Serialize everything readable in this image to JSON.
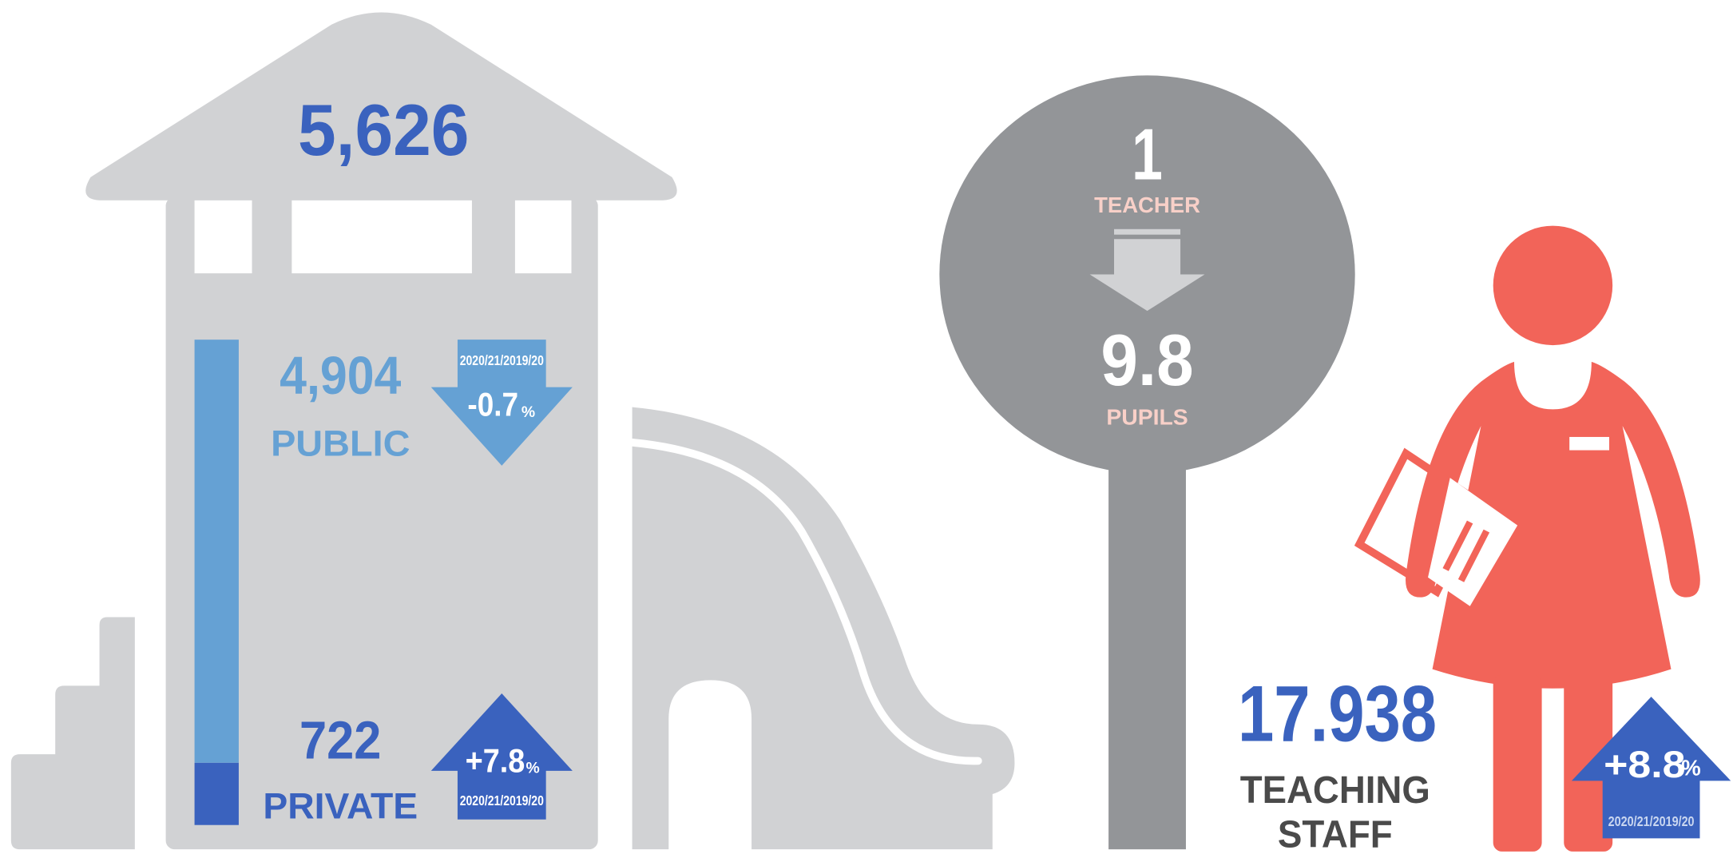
{
  "schools": {
    "total": "5,626",
    "public": {
      "value": 4904,
      "label": "4,904",
      "name": "PUBLIC",
      "change": "-0.7",
      "unit": "%",
      "period": "2020/21/2019/20"
    },
    "private": {
      "value": 722,
      "label": "722",
      "name": "PRIVATE",
      "change": "+7.8",
      "unit": "%",
      "period": "2020/21/2019/20"
    }
  },
  "ratio": {
    "teacher_count": "1",
    "teacher_label": "TEACHER",
    "pupils_count": "9.8",
    "pupils_label": "PUPILS"
  },
  "staff": {
    "count": "17.938",
    "label_line1": "TEACHING",
    "label_line2": "STAFF",
    "change": "+8.8",
    "unit": "%",
    "period": "2020/21/2019/20"
  }
}
